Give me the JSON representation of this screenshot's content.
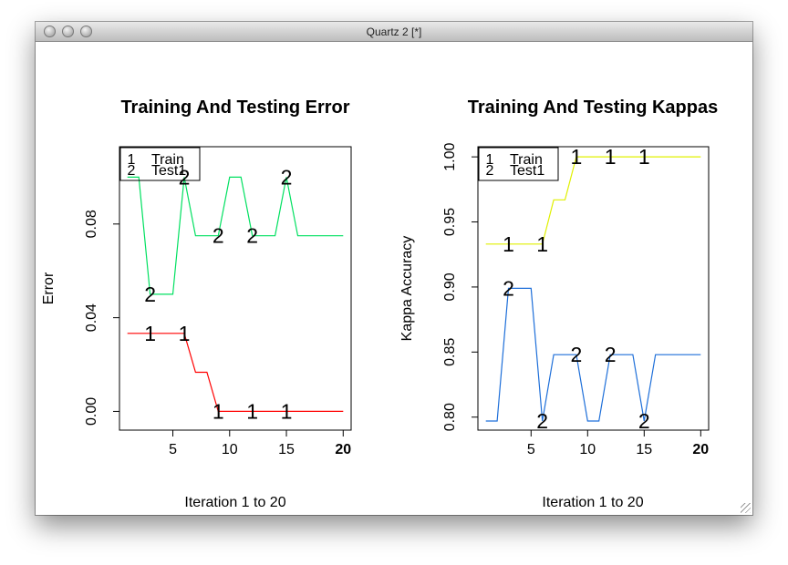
{
  "window": {
    "title": "Quartz 2 [*]",
    "buttons": [
      "close",
      "minimize",
      "zoom"
    ]
  },
  "colors": {
    "train_error": "#ff0000",
    "test_error": "#00e060",
    "train_kappa": "#e0f000",
    "test_kappa": "#1e6fd9"
  },
  "chart_data": [
    {
      "type": "line",
      "title": "Training And Testing Error",
      "xlabel": "Iteration 1 to 20",
      "ylabel": "Error",
      "xlim": [
        0.3,
        20.7
      ],
      "ylim": [
        -0.008,
        0.113
      ],
      "xticks": [
        5,
        10,
        15,
        20
      ],
      "yticks": [
        0.0,
        0.04,
        0.08
      ],
      "ytick_labels": [
        "0.00",
        "0.04",
        "0.08"
      ],
      "legend": {
        "position": "top-left",
        "entries": [
          {
            "symbol": "1",
            "label": "Train"
          },
          {
            "symbol": "2",
            "label": "Test1"
          }
        ]
      },
      "x": [
        1,
        2,
        3,
        4,
        5,
        6,
        7,
        8,
        9,
        10,
        11,
        12,
        13,
        14,
        15,
        16,
        17,
        18,
        19,
        20
      ],
      "series": [
        {
          "marker": "1",
          "color_key": "train_error",
          "values": [
            0.0333,
            0.0333,
            0.0333,
            0.0333,
            0.0333,
            0.0333,
            0.0167,
            0.0167,
            0,
            0,
            0,
            0,
            0,
            0,
            0,
            0,
            0,
            0,
            0,
            0
          ]
        },
        {
          "marker": "2",
          "color_key": "test_error",
          "values": [
            0.1,
            0.1,
            0.05,
            0.05,
            0.05,
            0.1,
            0.075,
            0.075,
            0.075,
            0.1,
            0.1,
            0.075,
            0.075,
            0.075,
            0.1,
            0.075,
            0.075,
            0.075,
            0.075,
            0.075
          ]
        }
      ],
      "marker_x": [
        3,
        6,
        9,
        12,
        15
      ]
    },
    {
      "type": "line",
      "title": "Training And Testing Kappas",
      "xlabel": "Iteration 1 to 20",
      "ylabel": "Kappa Accuracy",
      "xlim": [
        0.3,
        20.7
      ],
      "ylim": [
        0.79,
        1.0078
      ],
      "xticks": [
        5,
        10,
        15,
        20
      ],
      "yticks": [
        0.8,
        0.85,
        0.9,
        0.95,
        1.0
      ],
      "ytick_labels": [
        "0.80",
        "0.85",
        "0.90",
        "0.95",
        "1.00"
      ],
      "legend": {
        "position": "top-left",
        "entries": [
          {
            "symbol": "1",
            "label": "Train"
          },
          {
            "symbol": "2",
            "label": "Test1"
          }
        ]
      },
      "x": [
        1,
        2,
        3,
        4,
        5,
        6,
        7,
        8,
        9,
        10,
        11,
        12,
        13,
        14,
        15,
        16,
        17,
        18,
        19,
        20
      ],
      "series": [
        {
          "marker": "1",
          "color_key": "train_kappa",
          "values": [
            0.933,
            0.933,
            0.933,
            0.933,
            0.933,
            0.933,
            0.967,
            0.967,
            1.0,
            1.0,
            1.0,
            1.0,
            1.0,
            1.0,
            1.0,
            1.0,
            1.0,
            1.0,
            1.0,
            1.0
          ]
        },
        {
          "marker": "2",
          "color_key": "test_kappa",
          "values": [
            0.797,
            0.797,
            0.899,
            0.899,
            0.899,
            0.797,
            0.848,
            0.848,
            0.848,
            0.797,
            0.797,
            0.848,
            0.848,
            0.848,
            0.797,
            0.848,
            0.848,
            0.848,
            0.848,
            0.848
          ]
        }
      ],
      "marker_x": [
        3,
        6,
        9,
        12,
        15
      ]
    }
  ]
}
